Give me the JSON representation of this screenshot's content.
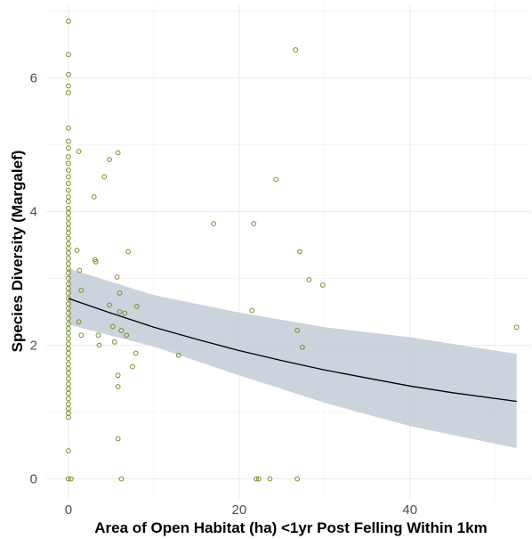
{
  "chart_data": {
    "type": "scatter",
    "title": "",
    "xlabel": "Area of Open Habitat (ha) <1yr Post Felling Within 1km",
    "ylabel": "Species Diversity (Margalef)",
    "xlim": [
      -2.6,
      54.2
    ],
    "ylim": [
      -0.3,
      7.1
    ],
    "x_ticks": [
      0,
      20,
      40
    ],
    "x_tick_labels": [
      "0",
      "20",
      "40"
    ],
    "y_ticks": [
      0,
      2,
      4,
      6
    ],
    "y_tick_labels": [
      "0",
      "2",
      "4",
      "6"
    ],
    "grid": true,
    "legend": "none",
    "series": [
      {
        "type": "scatter",
        "points": [
          [
            0,
            6.85
          ],
          [
            0,
            6.35
          ],
          [
            0,
            6.05
          ],
          [
            0,
            5.88
          ],
          [
            0,
            5.78
          ],
          [
            0,
            5.25
          ],
          [
            0,
            5.05
          ],
          [
            0,
            4.95
          ],
          [
            0,
            4.82
          ],
          [
            0,
            4.72
          ],
          [
            0,
            4.62
          ],
          [
            0,
            4.52
          ],
          [
            0,
            4.42
          ],
          [
            0,
            4.32
          ],
          [
            0,
            4.22
          ],
          [
            0,
            4.15
          ],
          [
            0,
            4.05
          ],
          [
            0,
            3.98
          ],
          [
            0,
            3.9
          ],
          [
            0,
            3.82
          ],
          [
            0,
            3.75
          ],
          [
            0,
            3.68
          ],
          [
            0,
            3.6
          ],
          [
            0,
            3.52
          ],
          [
            0,
            3.45
          ],
          [
            0,
            3.38
          ],
          [
            0,
            3.3
          ],
          [
            0,
            3.22
          ],
          [
            0,
            3.15
          ],
          [
            0,
            3.08
          ],
          [
            0,
            3.0
          ],
          [
            0,
            2.92
          ],
          [
            0,
            2.85
          ],
          [
            0,
            2.78
          ],
          [
            0,
            2.7
          ],
          [
            0,
            2.62
          ],
          [
            0,
            2.55
          ],
          [
            0,
            2.48
          ],
          [
            0,
            2.4
          ],
          [
            0,
            2.32
          ],
          [
            0,
            2.25
          ],
          [
            0,
            2.18
          ],
          [
            0,
            2.1
          ],
          [
            0,
            2.02
          ],
          [
            0,
            1.95
          ],
          [
            0,
            1.88
          ],
          [
            0,
            1.8
          ],
          [
            0,
            1.72
          ],
          [
            0,
            1.65
          ],
          [
            0,
            1.58
          ],
          [
            0,
            1.5
          ],
          [
            0,
            1.42
          ],
          [
            0,
            1.35
          ],
          [
            0,
            1.28
          ],
          [
            0,
            1.2
          ],
          [
            0,
            1.12
          ],
          [
            0,
            1.05
          ],
          [
            0,
            0.98
          ],
          [
            0,
            0.92
          ],
          [
            0,
            0.42
          ],
          [
            0,
            0.0
          ],
          [
            0.3,
            0.0
          ],
          [
            1.2,
            4.9
          ],
          [
            1.0,
            3.42
          ],
          [
            1.3,
            3.12
          ],
          [
            1.5,
            2.82
          ],
          [
            1.2,
            2.35
          ],
          [
            1.5,
            2.15
          ],
          [
            3.0,
            4.22
          ],
          [
            3.1,
            3.28
          ],
          [
            3.2,
            3.25
          ],
          [
            3.5,
            2.15
          ],
          [
            3.6,
            2.0
          ],
          [
            4.2,
            4.52
          ],
          [
            4.8,
            4.78
          ],
          [
            4.8,
            2.6
          ],
          [
            5.2,
            2.28
          ],
          [
            5.4,
            2.05
          ],
          [
            5.7,
            3.02
          ],
          [
            5.8,
            4.88
          ],
          [
            6.0,
            2.78
          ],
          [
            6.0,
            2.5
          ],
          [
            6.2,
            2.22
          ],
          [
            6.6,
            2.48
          ],
          [
            6.8,
            2.15
          ],
          [
            5.8,
            1.55
          ],
          [
            5.8,
            1.38
          ],
          [
            5.8,
            0.6
          ],
          [
            6.2,
            0.0
          ],
          [
            7.0,
            3.4
          ],
          [
            7.5,
            1.68
          ],
          [
            7.9,
            1.88
          ],
          [
            8.0,
            2.58
          ],
          [
            12.9,
            1.85
          ],
          [
            17.0,
            3.82
          ],
          [
            21.5,
            2.52
          ],
          [
            21.7,
            3.82
          ],
          [
            22.0,
            0.0
          ],
          [
            22.3,
            0.0
          ],
          [
            23.6,
            0.0
          ],
          [
            24.3,
            4.48
          ],
          [
            26.6,
            6.42
          ],
          [
            26.8,
            2.22
          ],
          [
            27.1,
            3.4
          ],
          [
            27.4,
            1.97
          ],
          [
            26.8,
            0.0
          ],
          [
            28.2,
            2.98
          ],
          [
            29.8,
            2.9
          ],
          [
            52.5,
            2.27
          ]
        ]
      },
      {
        "type": "line",
        "name": "",
        "x": [
          0,
          5,
          10,
          15,
          20,
          25,
          30,
          35,
          40,
          45,
          52.5
        ],
        "y": [
          2.7,
          2.48,
          2.27,
          2.09,
          1.92,
          1.77,
          1.63,
          1.51,
          1.39,
          1.29,
          1.16
        ]
      },
      {
        "type": "band",
        "x": [
          0,
          10,
          20,
          30,
          40,
          52.5
        ],
        "lower": [
          2.31,
          1.98,
          1.55,
          1.14,
          0.79,
          0.46
        ],
        "upper": [
          3.15,
          2.75,
          2.49,
          2.27,
          2.12,
          1.87
        ]
      }
    ]
  },
  "style": {
    "point_stroke": "#7a8c1e",
    "band_fill": "#c5ced9",
    "line_color": "#000000",
    "grid_color": "#ebebeb"
  }
}
